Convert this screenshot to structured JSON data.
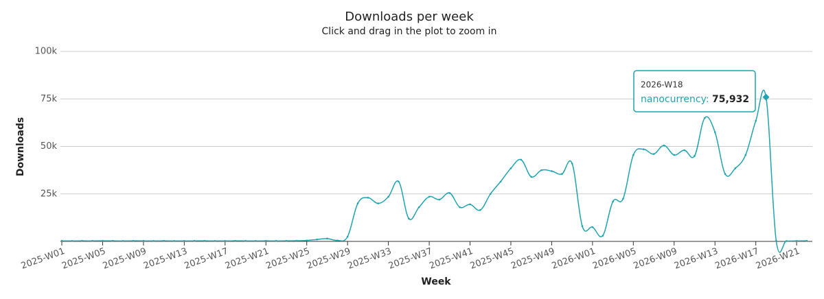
{
  "chart_data": {
    "type": "line",
    "title": "Downloads per week",
    "subtitle": "Click and drag in the plot to zoom in",
    "x_label": "Week",
    "y_label": "Downloads",
    "categories": [
      "2025-W01",
      null,
      null,
      null,
      "2025-W05",
      null,
      null,
      null,
      "2025-W09",
      null,
      null,
      null,
      "2025-W13",
      null,
      null,
      null,
      "2025-W17",
      null,
      null,
      null,
      "2025-W21",
      null,
      null,
      null,
      "2025-W25",
      null,
      null,
      null,
      "2025-W29",
      null,
      null,
      null,
      "2025-W33",
      null,
      null,
      null,
      "2025-W37",
      null,
      null,
      null,
      "2025-W41",
      null,
      null,
      null,
      "2025-W45",
      null,
      null,
      null,
      "2025-W49",
      null,
      null,
      null,
      "2026-W01",
      null,
      null,
      null,
      "2026-W05",
      null,
      null,
      null,
      "2026-W09",
      null,
      null,
      null,
      "2026-W13",
      null,
      null,
      null,
      "2026-W17",
      null,
      null,
      null,
      "2026-W21",
      null
    ],
    "series": [
      {
        "name": "nanocurrency",
        "color": "#1fa3b0",
        "values": [
          300,
          250,
          300,
          280,
          320,
          300,
          260,
          300,
          280,
          250,
          300,
          270,
          260,
          280,
          300,
          250,
          270,
          300,
          280,
          260,
          300,
          280,
          300,
          350,
          500,
          1000,
          1500,
          500,
          2500,
          20000,
          23000,
          20000,
          23500,
          31500,
          12000,
          18000,
          23500,
          22000,
          25500,
          18000,
          19500,
          16500,
          25000,
          31500,
          38500,
          43000,
          34000,
          37500,
          37000,
          35500,
          41000,
          8000,
          7500,
          3000,
          21000,
          22500,
          45500,
          48500,
          46000,
          50500,
          45500,
          48000,
          45000,
          65000,
          57500,
          35500,
          38500,
          45500,
          63500,
          75932,
          300,
          200,
          250,
          300
        ]
      }
    ],
    "ylim": [
      0,
      100000
    ],
    "yticks": [
      {
        "value": 25000,
        "label": "25k"
      },
      {
        "value": 50000,
        "label": "50k"
      },
      {
        "value": 75000,
        "label": "75k"
      },
      {
        "value": 100000,
        "label": "100k"
      }
    ],
    "grid": true,
    "tooltip": {
      "x": "2026-W18",
      "series": "nanocurrency",
      "value": 75932,
      "label": "75,932"
    }
  }
}
